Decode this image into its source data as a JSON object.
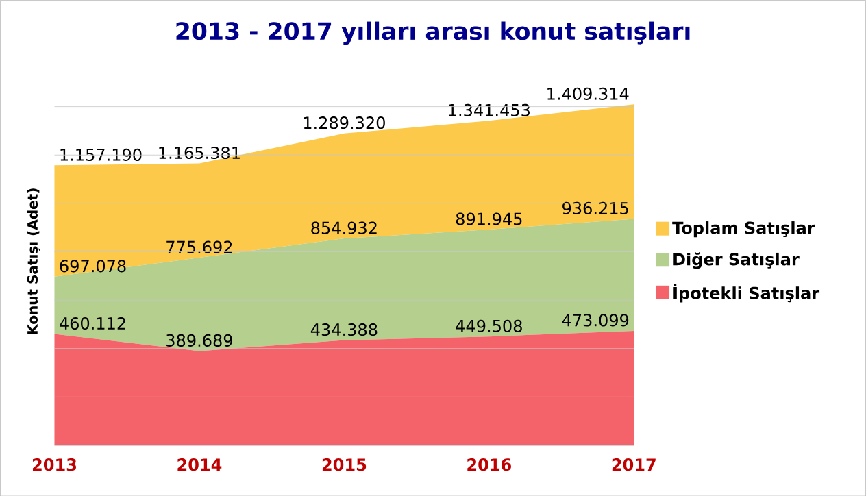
{
  "chart_data": {
    "type": "area",
    "title": "2013 - 2017 yılları arası konut satışları",
    "ylabel": "Konut Satışı (Adet)",
    "categories": [
      "2013",
      "2014",
      "2015",
      "2016",
      "2017"
    ],
    "series": [
      {
        "name": "Toplam Satışlar",
        "color": "#fcc94a",
        "values": [
          1157190,
          1165381,
          1289320,
          1341453,
          1409314
        ],
        "value_labels": [
          "1.157.190",
          "1.165.381",
          "1.289.320",
          "1.341.453",
          "1.409.314"
        ]
      },
      {
        "name": "Diğer Satışlar",
        "color": "#b5cf8e",
        "values": [
          697078,
          775692,
          854932,
          891945,
          936215
        ],
        "value_labels": [
          "697.078",
          "775.692",
          "854.932",
          "891.945",
          "936.215"
        ]
      },
      {
        "name": "İpotekli Satışlar",
        "color": "#f5636a",
        "values": [
          460112,
          389689,
          434388,
          449508,
          473099
        ],
        "value_labels": [
          "460.112",
          "389.689",
          "434.388",
          "449.508",
          "473.099"
        ]
      }
    ],
    "tick_labels": "x",
    "grid": "y",
    "legend": "right"
  }
}
